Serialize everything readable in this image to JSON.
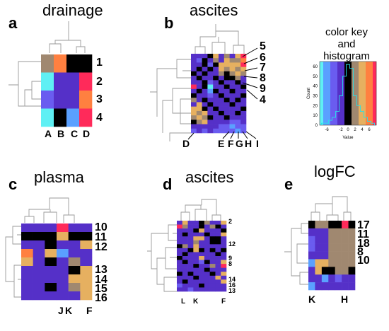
{
  "palette": {
    "-8": "#5ff0f4",
    "-6": "#5aa0ff",
    "-4": "#6a5cf0",
    "-2": "#5530c8",
    "0": "#000000",
    "2": "#a08870",
    "4": "#e6b060",
    "6": "#ff8040",
    "8": "#ff2a5a"
  },
  "chart_data": [
    {
      "type": "heatmap",
      "panel": "a",
      "title": "drainage",
      "columns": [
        "A",
        "B",
        "C",
        "D"
      ],
      "rows": [
        "1",
        "2",
        "3",
        "4"
      ],
      "values": [
        [
          2,
          6,
          0,
          0
        ],
        [
          -8,
          -2,
          -2,
          8
        ],
        [
          -4,
          -2,
          -2,
          6
        ],
        [
          -8,
          0,
          -6,
          8
        ]
      ]
    },
    {
      "type": "heatmap",
      "panel": "b",
      "title": "ascites",
      "row_labels": [
        "5",
        "6",
        "7",
        "8",
        "9",
        "4"
      ],
      "column_labels": [
        "D",
        "E",
        "F",
        "G",
        "H",
        "I"
      ],
      "n_rows": 18,
      "n_cols": 10,
      "values": [
        [
          -2,
          -2,
          -2,
          0,
          4,
          -2,
          2,
          -2,
          4,
          8
        ],
        [
          -2,
          -4,
          0,
          -2,
          2,
          -2,
          4,
          2,
          2,
          6
        ],
        [
          -2,
          -2,
          0,
          -4,
          0,
          4,
          4,
          4,
          4,
          8
        ],
        [
          -2,
          0,
          -2,
          0,
          -2,
          4,
          2,
          4,
          2,
          4
        ],
        [
          0,
          -2,
          0,
          -2,
          -2,
          2,
          0,
          2,
          4,
          2
        ],
        [
          -2,
          0,
          -2,
          -2,
          0,
          -2,
          0,
          0,
          2,
          -2
        ],
        [
          -2,
          -2,
          0,
          -4,
          -2,
          0,
          -2,
          -2,
          0,
          -2
        ],
        [
          8,
          -2,
          0,
          -8,
          -2,
          -2,
          0,
          -2,
          -2,
          0
        ],
        [
          -2,
          0,
          -2,
          -6,
          0,
          -2,
          -2,
          0,
          -2,
          -2
        ],
        [
          0,
          -2,
          -2,
          -4,
          -2,
          0,
          -2,
          -2,
          -2,
          0
        ],
        [
          2,
          -2,
          0,
          -2,
          -2,
          -2,
          0,
          -2,
          0,
          -2
        ],
        [
          -2,
          4,
          -2,
          0,
          -2,
          -2,
          -2,
          0,
          -2,
          -2
        ],
        [
          4,
          4,
          0,
          -2,
          0,
          -2,
          -2,
          -2,
          -2,
          0
        ],
        [
          4,
          2,
          4,
          -2,
          -2,
          0,
          -2,
          -2,
          0,
          -2
        ],
        [
          2,
          4,
          2,
          0,
          -2,
          -2,
          0,
          -2,
          -2,
          -2
        ],
        [
          0,
          2,
          4,
          -2,
          -2,
          -2,
          -2,
          -4,
          -4,
          -2
        ],
        [
          -2,
          -2,
          -2,
          -2,
          -2,
          -4,
          -4,
          -6,
          -4,
          -4
        ],
        [
          -4,
          -2,
          -4,
          -2,
          -4,
          -4,
          -4,
          -4,
          -6,
          -4
        ]
      ]
    },
    {
      "type": "histogram",
      "panel": "color-key",
      "title_lines": [
        "color key",
        "and",
        "histogram"
      ],
      "xlabel": "Value",
      "ylabel": "Count",
      "x_ticks": [
        "-6",
        "-2",
        "0",
        "2",
        "4",
        "6"
      ],
      "y_ticks": [
        "0",
        "10",
        "20",
        "30",
        "40",
        "50",
        "60"
      ],
      "xlim": [
        -8,
        8
      ],
      "ylim": [
        0,
        65
      ],
      "histogram_x": [
        -7,
        -6,
        -5,
        -4,
        -3,
        -2,
        -1,
        0,
        1,
        2,
        3,
        4,
        5,
        6,
        7
      ],
      "histogram_counts": [
        2,
        2,
        5,
        8,
        14,
        30,
        50,
        62,
        58,
        30,
        20,
        14,
        8,
        4,
        2
      ]
    },
    {
      "type": "heatmap",
      "panel": "c",
      "title": "plasma",
      "row_labels": [
        "10",
        "11",
        "12",
        "13",
        "14",
        "15",
        "16"
      ],
      "column_labels": [
        "J",
        "K",
        "F"
      ],
      "n_rows": 9,
      "n_cols": 6,
      "values": [
        [
          -2,
          -2,
          -2,
          8,
          -2,
          -2
        ],
        [
          0,
          0,
          0,
          4,
          0,
          0
        ],
        [
          -2,
          -2,
          0,
          -2,
          -2,
          4
        ],
        [
          6,
          -2,
          4,
          -6,
          -2,
          -2
        ],
        [
          4,
          -2,
          0,
          -2,
          2,
          -2
        ],
        [
          -2,
          -2,
          -2,
          -2,
          0,
          4
        ],
        [
          -2,
          -2,
          -2,
          -2,
          4,
          4
        ],
        [
          -2,
          -2,
          0,
          -2,
          2,
          4
        ],
        [
          -2,
          -2,
          -2,
          -2,
          -2,
          4
        ]
      ]
    },
    {
      "type": "heatmap",
      "panel": "d",
      "title": "ascites",
      "row_labels": [
        "2",
        "12",
        "9",
        "8",
        "14",
        "16",
        "13"
      ],
      "column_labels": [
        "L",
        "K",
        "F"
      ],
      "n_rows": 18,
      "n_cols": 9,
      "values": [
        [
          -2,
          4,
          -2,
          -2,
          0,
          2,
          -2,
          -2,
          4
        ],
        [
          8,
          2,
          -2,
          -2,
          0,
          -2,
          2,
          0,
          -2
        ],
        [
          -2,
          -2,
          -2,
          0,
          4,
          -2,
          -2,
          -2,
          0
        ],
        [
          -2,
          0,
          -2,
          -2,
          -2,
          0,
          -2,
          -2,
          4
        ],
        [
          -2,
          -2,
          -2,
          4,
          4,
          -2,
          0,
          0,
          -2
        ],
        [
          -2,
          -2,
          -2,
          2,
          -2,
          -2,
          0,
          0,
          -2
        ],
        [
          0,
          2,
          -2,
          4,
          -2,
          -2,
          -2,
          -2,
          -2
        ],
        [
          -2,
          -2,
          0,
          4,
          0,
          -2,
          0,
          -2,
          0
        ],
        [
          -2,
          0,
          -2,
          -2,
          -2,
          -2,
          -2,
          0,
          -2
        ],
        [
          0,
          -2,
          -2,
          -2,
          4,
          -2,
          -2,
          -2,
          -2
        ],
        [
          -2,
          0,
          -2,
          -2,
          -4,
          0,
          -2,
          -2,
          4
        ],
        [
          -2,
          -2,
          -2,
          0,
          -2,
          -2,
          2,
          -2,
          8
        ],
        [
          -2,
          -2,
          -2,
          -2,
          -2,
          0,
          -2,
          -2,
          -2
        ],
        [
          0,
          -2,
          0,
          -2,
          -2,
          -2,
          0,
          -2,
          4
        ],
        [
          -2,
          -2,
          -2,
          0,
          -2,
          -2,
          -2,
          4,
          -2
        ],
        [
          -2,
          0,
          -2,
          -2,
          -2,
          -2,
          -2,
          -2,
          4
        ],
        [
          -4,
          -2,
          -2,
          -2,
          0,
          -2,
          -2,
          -2,
          -2
        ],
        [
          -2,
          -2,
          -4,
          -2,
          -2,
          -2,
          -2,
          -2,
          -2
        ]
      ]
    },
    {
      "type": "heatmap",
      "panel": "e",
      "title": "logFC",
      "row_labels": [
        "17",
        "11",
        "18",
        "8",
        "10"
      ],
      "column_labels": [
        "K",
        "H"
      ],
      "n_rows": 9,
      "n_cols": 7,
      "values": [
        [
          0,
          2,
          2,
          0,
          0,
          8,
          0
        ],
        [
          -2,
          -2,
          -2,
          2,
          2,
          2,
          2
        ],
        [
          -4,
          -2,
          -2,
          2,
          2,
          2,
          2
        ],
        [
          -4,
          -2,
          -2,
          2,
          2,
          2,
          2
        ],
        [
          -2,
          -2,
          -2,
          2,
          2,
          2,
          2
        ],
        [
          -6,
          4,
          4,
          2,
          2,
          2,
          2
        ],
        [
          -2,
          4,
          0,
          0,
          2,
          2,
          0
        ],
        [
          -2,
          -2,
          -6,
          -2,
          -4,
          -2,
          -2
        ],
        [
          -6,
          -2,
          -2,
          -2,
          -2,
          -2,
          -2
        ]
      ]
    }
  ],
  "panels": {
    "a": {
      "letter": "a",
      "title": "drainage"
    },
    "b": {
      "letter": "b",
      "title": "ascites"
    },
    "c": {
      "letter": "c",
      "title": "plasma"
    },
    "d": {
      "letter": "d",
      "title": "ascites"
    },
    "e": {
      "letter": "e",
      "title": "logFC"
    }
  }
}
